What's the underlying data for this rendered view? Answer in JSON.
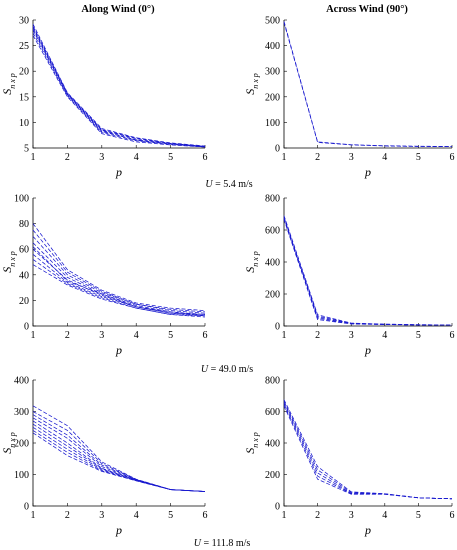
{
  "figure": {
    "titles": {
      "left": "Along Wind (0°)",
      "right": "Across Wind (90°)"
    },
    "ylabel": {
      "main": "S",
      "sub": "n x p"
    },
    "xlabel": "p",
    "rows": [
      {
        "caption_var": "U",
        "caption_value": " = 5.4 m/s"
      },
      {
        "caption_var": "U",
        "caption_value": " = 49.0 m/s"
      },
      {
        "caption_var": "U",
        "caption_value": " = 111.8 m/s"
      }
    ],
    "line_color": "#1a1acf"
  },
  "chart_data": [
    {
      "type": "line",
      "panel": "along-u5.4",
      "title": "Along Wind (0°)",
      "xlabel": "p",
      "ylabel": "S n x p",
      "x": [
        1,
        2,
        3,
        4,
        5,
        6
      ],
      "xlim": [
        1,
        6
      ],
      "ylim": [
        5,
        30
      ],
      "xticks": [
        1,
        2,
        3,
        4,
        5,
        6
      ],
      "yticks": [
        5,
        10,
        15,
        20,
        25,
        30
      ],
      "series": [
        {
          "values": [
            29.2,
            15.8,
            8.8,
            7.0,
            6.0,
            5.4
          ]
        },
        {
          "values": [
            28.6,
            15.6,
            8.5,
            6.8,
            5.9,
            5.3
          ]
        },
        {
          "values": [
            28.0,
            15.4,
            8.2,
            6.6,
            5.8,
            5.3
          ]
        },
        {
          "values": [
            27.5,
            15.2,
            8.0,
            6.4,
            5.7,
            5.2
          ]
        },
        {
          "values": [
            27.0,
            15.0,
            7.8,
            6.2,
            5.6,
            5.2
          ]
        },
        {
          "values": [
            28.8,
            15.7,
            8.6,
            6.9,
            5.9,
            5.3
          ]
        },
        {
          "values": [
            28.3,
            15.5,
            8.4,
            6.5,
            5.8,
            5.2
          ]
        }
      ]
    },
    {
      "type": "line",
      "panel": "across-u5.4",
      "xlabel": "p",
      "ylabel": "S n x p",
      "x": [
        1,
        2,
        3,
        4,
        5,
        6
      ],
      "xlim": [
        1,
        6
      ],
      "ylim": [
        0,
        500
      ],
      "xticks": [
        1,
        2,
        3,
        4,
        5,
        6
      ],
      "yticks": [
        0,
        100,
        200,
        300,
        400,
        500
      ],
      "series": [
        {
          "values": [
            495,
            24,
            13,
            9,
            7,
            6
          ]
        },
        {
          "values": [
            490,
            22,
            12,
            8,
            6,
            5
          ]
        }
      ]
    },
    {
      "type": "line",
      "panel": "along-u49.0",
      "xlabel": "p",
      "ylabel": "S n x p",
      "x": [
        1,
        2,
        3,
        4,
        5,
        6
      ],
      "xlim": [
        1,
        6
      ],
      "ylim": [
        0,
        100
      ],
      "xticks": [
        1,
        2,
        3,
        4,
        5,
        6
      ],
      "yticks": [
        0,
        20,
        40,
        60,
        80,
        100
      ],
      "series": [
        {
          "values": [
            80,
            44,
            28,
            18,
            14,
            12
          ]
        },
        {
          "values": [
            75,
            42,
            27,
            17,
            13,
            11
          ]
        },
        {
          "values": [
            70,
            40,
            26,
            17,
            12,
            10
          ]
        },
        {
          "values": [
            65,
            38,
            25,
            16,
            11,
            9
          ]
        },
        {
          "values": [
            60,
            36,
            24,
            15,
            10,
            9
          ]
        },
        {
          "values": [
            56,
            34,
            23,
            15,
            10,
            8
          ]
        },
        {
          "values": [
            52,
            33,
            22,
            14,
            9,
            8
          ]
        },
        {
          "values": [
            48,
            32,
            21,
            14,
            9,
            7
          ]
        },
        {
          "values": [
            62,
            35,
            25,
            15,
            11,
            8
          ]
        }
      ]
    },
    {
      "type": "line",
      "panel": "across-u49.0",
      "xlabel": "p",
      "ylabel": "S n x p",
      "x": [
        1,
        2,
        3,
        4,
        5,
        6
      ],
      "xlim": [
        1,
        6
      ],
      "ylim": [
        0,
        800
      ],
      "xticks": [
        1,
        2,
        3,
        4,
        5,
        6
      ],
      "yticks": [
        0,
        200,
        400,
        600,
        800
      ],
      "series": [
        {
          "values": [
            690,
            70,
            18,
            12,
            8,
            6
          ]
        },
        {
          "values": [
            680,
            62,
            16,
            11,
            8,
            6
          ]
        },
        {
          "values": [
            675,
            55,
            15,
            10,
            7,
            5
          ]
        },
        {
          "values": [
            670,
            48,
            14,
            10,
            7,
            5
          ]
        },
        {
          "values": [
            665,
            40,
            13,
            9,
            6,
            5
          ]
        }
      ]
    },
    {
      "type": "line",
      "panel": "along-u111.8",
      "xlabel": "p",
      "ylabel": "S n x p",
      "x": [
        1,
        2,
        3,
        4,
        5,
        6
      ],
      "xlim": [
        1,
        6
      ],
      "ylim": [
        0,
        400
      ],
      "xticks": [
        1,
        2,
        3,
        4,
        5,
        6
      ],
      "yticks": [
        0,
        100,
        200,
        300,
        400
      ],
      "series": [
        {
          "values": [
            318,
            255,
            140,
            85,
            52,
            46
          ]
        },
        {
          "values": [
            300,
            240,
            135,
            84,
            52,
            46
          ]
        },
        {
          "values": [
            290,
            225,
            130,
            84,
            52,
            46
          ]
        },
        {
          "values": [
            280,
            215,
            125,
            83,
            52,
            46
          ]
        },
        {
          "values": [
            270,
            200,
            120,
            82,
            52,
            46
          ]
        },
        {
          "values": [
            260,
            190,
            118,
            82,
            52,
            46
          ]
        },
        {
          "values": [
            250,
            180,
            115,
            81,
            52,
            46
          ]
        },
        {
          "values": [
            240,
            170,
            112,
            80,
            52,
            46
          ]
        },
        {
          "values": [
            232,
            160,
            110,
            80,
            52,
            46
          ]
        }
      ]
    },
    {
      "type": "line",
      "panel": "across-u111.8",
      "xlabel": "p",
      "ylabel": "S n x p",
      "x": [
        1,
        2,
        3,
        4,
        5,
        6
      ],
      "xlim": [
        1,
        6
      ],
      "ylim": [
        0,
        800
      ],
      "xticks": [
        1,
        2,
        3,
        4,
        5,
        6
      ],
      "yticks": [
        0,
        200,
        400,
        600,
        800
      ],
      "series": [
        {
          "values": [
            675,
            250,
            90,
            78,
            52,
            46
          ]
        },
        {
          "values": [
            665,
            230,
            85,
            77,
            52,
            46
          ]
        },
        {
          "values": [
            655,
            210,
            80,
            76,
            52,
            46
          ]
        },
        {
          "values": [
            645,
            190,
            78,
            75,
            52,
            46
          ]
        },
        {
          "values": [
            635,
            170,
            75,
            74,
            52,
            46
          ]
        }
      ]
    }
  ]
}
